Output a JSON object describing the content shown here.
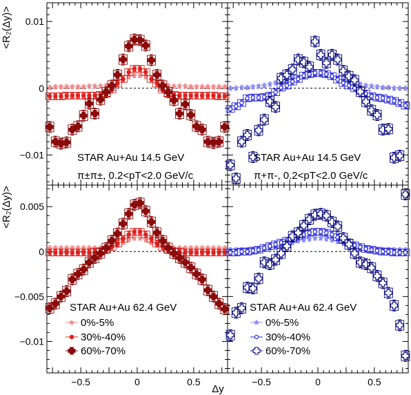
{
  "figure": {
    "xlabel": "Δy",
    "ylabel": "<R₂(Δy)>",
    "legend": {
      "left": [
        "0%-5%",
        "30%-40%",
        "60%-70%"
      ],
      "right": [
        "0%-5%",
        "30%-40%",
        "60%-70%"
      ]
    },
    "colors": {
      "like_0_5": "#f08a8a",
      "like_30_40": "#e0201c",
      "like_60_70": "#8b0a0a",
      "unlike_0_5": "#8c8cf2",
      "unlike_30_40": "#2a2ad8",
      "unlike_60_70": "#07077a"
    }
  },
  "chart_data": [
    {
      "type": "scatter",
      "panel": "top-left",
      "annotation": [
        "STAR Au+Au 14.5 GeV",
        "π±π±, 0.2<pT<2.0 GeV/c"
      ],
      "xlim": [
        -0.8,
        0.8
      ],
      "ylim": [
        -0.0145,
        0.0128
      ],
      "yticks": [
        -0.01,
        0,
        0.01
      ],
      "ytick_labels": [
        "−0.01",
        "0",
        "0.01"
      ],
      "x": [
        -0.775,
        -0.725,
        -0.675,
        -0.625,
        -0.575,
        -0.525,
        -0.475,
        -0.425,
        -0.375,
        -0.325,
        -0.275,
        -0.225,
        -0.175,
        -0.125,
        -0.075,
        -0.025,
        0.025,
        0.075,
        0.125,
        0.175,
        0.225,
        0.275,
        0.325,
        0.375,
        0.425,
        0.475,
        0.525,
        0.575,
        0.625,
        0.675,
        0.725,
        0.775
      ],
      "series": [
        {
          "name": "0%-5%",
          "marker": "star",
          "values": [
            0.0001,
            0.0002,
            0.0002,
            0.0002,
            0.0002,
            0.0002,
            0.0002,
            0.0003,
            0.0003,
            0.0003,
            0.0004,
            0.0005,
            0.0008,
            0.0012,
            0.0017,
            0.0019,
            0.0019,
            0.0017,
            0.0012,
            0.0008,
            0.0005,
            0.0004,
            0.0003,
            0.0003,
            0.0003,
            0.0002,
            0.0002,
            0.0002,
            0.0002,
            0.0002,
            0.0002,
            0.0002
          ]
        },
        {
          "name": "30%-40%",
          "marker": "circle",
          "values": [
            -0.0012,
            -0.0012,
            -0.0012,
            -0.0011,
            -0.0011,
            -0.0011,
            -0.0011,
            -0.0011,
            -0.0011,
            -0.001,
            -0.0007,
            -0.0002,
            0.0007,
            0.0014,
            0.0024,
            0.0029,
            0.0029,
            0.0024,
            0.0014,
            0.0007,
            -0.0002,
            -0.0007,
            -0.001,
            -0.0011,
            -0.0011,
            -0.0011,
            -0.0011,
            -0.0011,
            -0.0011,
            -0.0011,
            -0.0012,
            -0.0012
          ]
        },
        {
          "name": "60%-70%",
          "marker": "cross",
          "values": [
            -0.0058,
            -0.008,
            -0.0083,
            -0.0081,
            -0.0062,
            -0.0057,
            -0.0041,
            -0.0023,
            -0.0038,
            -0.0017,
            -0.0006,
            0.0004,
            0.002,
            0.0043,
            0.0063,
            0.0073,
            0.0072,
            0.0064,
            0.0042,
            0.002,
            0.0004,
            -0.0006,
            -0.0018,
            -0.0038,
            -0.0024,
            -0.004,
            -0.0057,
            -0.0062,
            -0.008,
            -0.0082,
            -0.008,
            -0.0058
          ]
        }
      ]
    },
    {
      "type": "scatter",
      "panel": "top-right",
      "annotation": [
        "STAR Au+Au 14.5 GeV",
        "π+π-, 0.2<pT<2.0 GeV/c"
      ],
      "xlim": [
        -0.8,
        0.8
      ],
      "ylim": [
        -0.0145,
        0.0128
      ],
      "yticks": [
        -0.01,
        0,
        0.01
      ],
      "ytick_labels": [
        "−0.01",
        "0",
        "0.01"
      ],
      "x": [
        -0.775,
        -0.725,
        -0.675,
        -0.625,
        -0.575,
        -0.525,
        -0.475,
        -0.425,
        -0.375,
        -0.325,
        -0.275,
        -0.225,
        -0.175,
        -0.125,
        -0.075,
        -0.025,
        0.025,
        0.075,
        0.125,
        0.175,
        0.225,
        0.275,
        0.325,
        0.375,
        0.425,
        0.475,
        0.525,
        0.575,
        0.625,
        0.675,
        0.725,
        0.775
      ],
      "series": [
        {
          "name": "0%-5%",
          "marker": "star",
          "values": [
            0.0,
            0.0,
            0.0001,
            0.0001,
            0.0002,
            0.0003,
            0.0004,
            0.0006,
            0.0008,
            0.001,
            0.0012,
            0.0014,
            0.0016,
            0.0018,
            0.0019,
            0.002,
            0.002,
            0.0019,
            0.0017,
            0.0015,
            0.0012,
            0.001,
            0.0008,
            0.0006,
            0.0004,
            0.0003,
            0.0002,
            0.0001,
            0.0001,
            0.0,
            0.0,
            0.0
          ]
        },
        {
          "name": "30%-40%",
          "marker": "circle",
          "values": [
            -0.0031,
            -0.0027,
            -0.0022,
            -0.0015,
            -0.0014,
            -0.0014,
            -0.0013,
            -0.0011,
            -0.0006,
            0.0001,
            0.0004,
            0.001,
            0.0014,
            0.0019,
            0.0021,
            0.0023,
            0.0023,
            0.0021,
            0.0018,
            0.0013,
            0.0008,
            0.0004,
            0.0,
            -0.0004,
            -0.0008,
            -0.0012,
            -0.0014,
            -0.0015,
            -0.0017,
            -0.0019,
            -0.0022,
            -0.0026
          ]
        },
        {
          "name": "60%-70%",
          "marker": "cross",
          "values": [
            -0.0115,
            -0.0135,
            -0.008,
            -0.007,
            -0.0103,
            -0.0063,
            -0.0047,
            -0.002,
            -0.0028,
            0.0015,
            0.002,
            0.0028,
            0.0043,
            0.0039,
            0.0032,
            0.007,
            0.005,
            0.0038,
            0.005,
            0.0043,
            0.0026,
            0.0018,
            0.0012,
            -0.0005,
            -0.002,
            -0.0033,
            -0.004,
            -0.0062,
            -0.0061,
            -0.0104,
            -0.0101,
            -0.0159
          ]
        }
      ]
    },
    {
      "type": "scatter",
      "panel": "bottom-left",
      "annotation": [
        "STAR Au+Au 62.4 GeV"
      ],
      "xlim": [
        -0.8,
        0.8
      ],
      "ylim": [
        -0.0135,
        0.0074
      ],
      "yticks": [
        -0.01,
        -0.005,
        0,
        0.005
      ],
      "ytick_labels": [
        "−0.01",
        "−0.005",
        "0",
        "0.005"
      ],
      "x": [
        -0.775,
        -0.725,
        -0.675,
        -0.625,
        -0.575,
        -0.525,
        -0.475,
        -0.425,
        -0.375,
        -0.325,
        -0.275,
        -0.225,
        -0.175,
        -0.125,
        -0.075,
        -0.025,
        0.025,
        0.075,
        0.125,
        0.175,
        0.225,
        0.275,
        0.325,
        0.375,
        0.425,
        0.475,
        0.525,
        0.575,
        0.625,
        0.675,
        0.725,
        0.775
      ],
      "series": [
        {
          "name": "0%-5%",
          "marker": "star",
          "values": [
            0.0004,
            0.0004,
            0.0004,
            0.0004,
            0.0004,
            0.0004,
            0.0004,
            0.0004,
            0.0004,
            0.0004,
            0.0005,
            0.0006,
            0.0007,
            0.001,
            0.0013,
            0.0015,
            0.0015,
            0.0013,
            0.001,
            0.0007,
            0.0006,
            0.0005,
            0.0004,
            0.0004,
            0.0004,
            0.0004,
            0.0004,
            0.0004,
            0.0004,
            0.0004,
            0.0004,
            0.0004
          ]
        },
        {
          "name": "30%-40%",
          "marker": "circle",
          "values": [
            -0.0001,
            -0.0001,
            -0.0001,
            -0.0001,
            -0.0001,
            -0.0001,
            -0.0001,
            -0.0001,
            0.0,
            0.0,
            0.0002,
            0.0005,
            0.0009,
            0.0014,
            0.0019,
            0.0022,
            0.0022,
            0.0019,
            0.0014,
            0.0009,
            0.0005,
            0.0002,
            0.0,
            0.0,
            -0.0001,
            -0.0001,
            -0.0001,
            -0.0001,
            -0.0001,
            -0.0001,
            -0.0001,
            -0.0001
          ]
        },
        {
          "name": "60%-70%",
          "marker": "cross",
          "values": [
            -0.0063,
            -0.0058,
            -0.005,
            -0.0044,
            -0.0031,
            -0.0025,
            -0.002,
            -0.0012,
            -0.0007,
            -0.0002,
            0.0004,
            0.0012,
            0.002,
            0.0031,
            0.0042,
            0.0052,
            0.0054,
            0.0045,
            0.0033,
            0.0021,
            0.0012,
            0.0004,
            -0.0002,
            -0.0007,
            -0.0012,
            -0.0018,
            -0.0025,
            -0.0031,
            -0.0043,
            -0.005,
            -0.0058,
            -0.0064
          ]
        }
      ]
    },
    {
      "type": "scatter",
      "panel": "bottom-right",
      "annotation": [
        "STAR Au+Au 62.4 GeV"
      ],
      "xlim": [
        -0.8,
        0.8
      ],
      "ylim": [
        -0.0135,
        0.0074
      ],
      "yticks": [
        -0.01,
        -0.005,
        0,
        0.005
      ],
      "ytick_labels": [
        "−0.01",
        "−0.005",
        "0",
        "0.005"
      ],
      "x": [
        -0.775,
        -0.725,
        -0.675,
        -0.625,
        -0.575,
        -0.525,
        -0.475,
        -0.425,
        -0.375,
        -0.325,
        -0.275,
        -0.225,
        -0.175,
        -0.125,
        -0.075,
        -0.025,
        0.025,
        0.075,
        0.125,
        0.175,
        0.225,
        0.275,
        0.325,
        0.375,
        0.425,
        0.475,
        0.525,
        0.575,
        0.625,
        0.675,
        0.725,
        0.775
      ],
      "series": [
        {
          "name": "0%-5%",
          "marker": "star",
          "values": [
            0.0002,
            0.0002,
            0.0002,
            0.0002,
            0.0002,
            0.0003,
            0.0003,
            0.0004,
            0.0005,
            0.0006,
            0.0008,
            0.001,
            0.0012,
            0.0013,
            0.0014,
            0.0015,
            0.0015,
            0.0014,
            0.0013,
            0.0011,
            0.0009,
            0.0007,
            0.0005,
            0.0004,
            0.0003,
            0.0003,
            0.0002,
            0.0002,
            0.0002,
            0.0002,
            0.0002,
            0.0002
          ]
        },
        {
          "name": "30%-40%",
          "marker": "circle",
          "values": [
            -0.0001,
            -0.0001,
            0.0,
            0.0,
            0.0001,
            0.0002,
            0.0004,
            0.0006,
            0.0008,
            0.001,
            0.0012,
            0.0014,
            0.0017,
            0.0019,
            0.0021,
            0.0022,
            0.0022,
            0.0021,
            0.0019,
            0.0016,
            0.0013,
            0.001,
            0.0007,
            0.0005,
            0.0003,
            0.0002,
            0.0001,
            0.0,
            0.0,
            -0.0001,
            -0.0001,
            -0.0001
          ]
        },
        {
          "name": "60%-70%",
          "marker": "cross",
          "values": [
            -0.0093,
            -0.0068,
            -0.0063,
            -0.004,
            -0.0041,
            -0.003,
            -0.0012,
            -0.0014,
            -0.0009,
            -0.0002,
            0.0006,
            0.0017,
            0.0021,
            0.0029,
            0.0036,
            0.0041,
            0.0042,
            0.004,
            0.0033,
            0.0028,
            0.0015,
            0.0008,
            -0.0002,
            -0.0012,
            -0.0014,
            -0.0018,
            -0.0027,
            -0.0035,
            -0.0046,
            -0.006,
            -0.0082,
            -0.0116
          ]
        }
      ]
    }
  ]
}
